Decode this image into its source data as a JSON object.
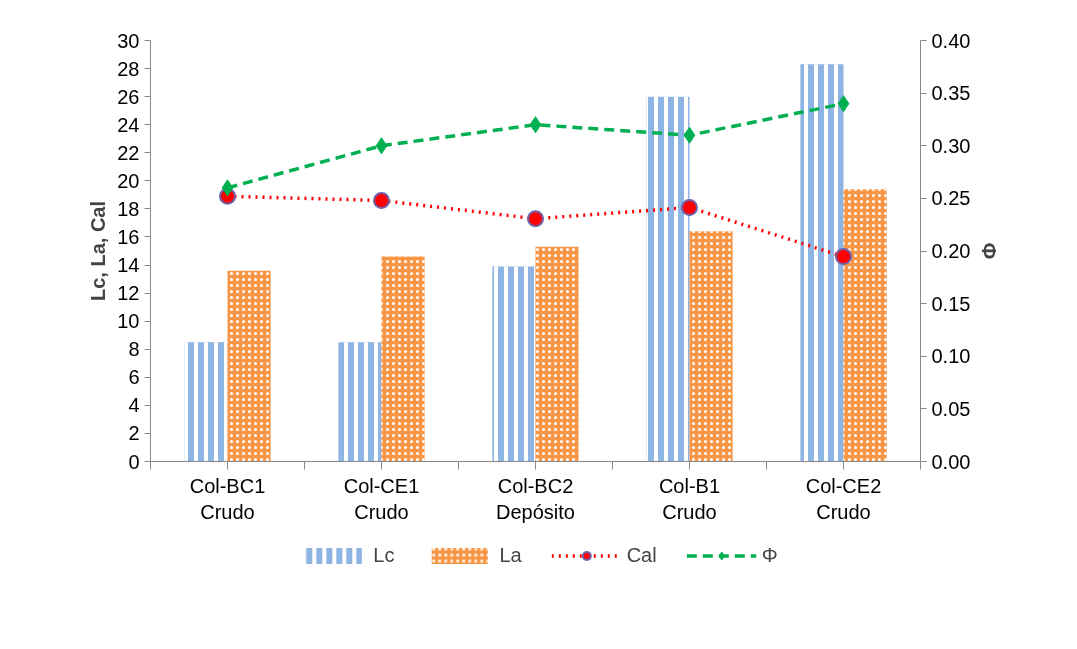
{
  "chart_data": {
    "type": "bar",
    "categories": [
      "Col-BC1\nCrudo",
      "Col-CE1\nCrudo",
      "Col-BC2\nDepósito",
      "Col-B1\nCrudo",
      "Col-CE2\nCrudo"
    ],
    "ylabel": "Lc, La, Cal",
    "y2label": "Φ",
    "ylim": [
      0,
      30
    ],
    "yticks": [
      0,
      2,
      4,
      6,
      8,
      10,
      12,
      14,
      16,
      18,
      20,
      22,
      24,
      26,
      28,
      30
    ],
    "y2lim": [
      0,
      0.4
    ],
    "y2ticks": [
      {
        "value": 0,
        "label": "0.00"
      },
      {
        "value": 0.05,
        "label": "0.05"
      },
      {
        "value": 0.1,
        "label": "0.10"
      },
      {
        "value": 0.15,
        "label": "0.15"
      },
      {
        "value": 0.2,
        "label": "0.20"
      },
      {
        "value": 0.25,
        "label": "0.25"
      },
      {
        "value": 0.3,
        "label": "0.30"
      },
      {
        "value": 0.35,
        "label": "0.35"
      },
      {
        "value": 0.4,
        "label": "0.40"
      }
    ],
    "grid": false,
    "legend": "bottom",
    "series": [
      {
        "name": "Lc",
        "type": "bar",
        "color": "#8eb4e3",
        "values": [
          8.5,
          8.5,
          13.9,
          26.0,
          28.3
        ]
      },
      {
        "name": "La",
        "type": "bar",
        "color": "#f79646",
        "values": [
          13.6,
          14.6,
          15.3,
          16.4,
          19.4
        ]
      },
      {
        "name": "Cal",
        "type": "line",
        "color": "#ff0000",
        "marker": "circle",
        "line_style": "dotted",
        "values": [
          18.9,
          18.6,
          17.3,
          18.1,
          14.6
        ]
      },
      {
        "name": "Φ",
        "type": "line",
        "color": "#00b050",
        "marker": "diamond",
        "line_style": "dashed",
        "axis": "y2",
        "values": [
          0.26,
          0.3,
          0.32,
          0.31,
          0.34
        ]
      }
    ]
  }
}
